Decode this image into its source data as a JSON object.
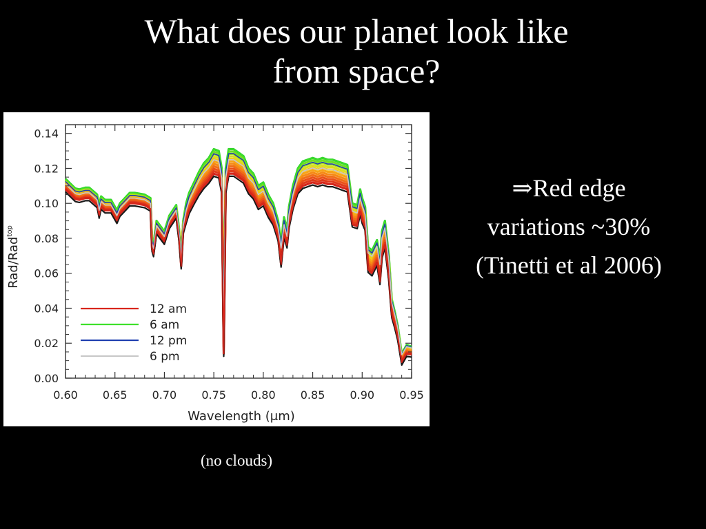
{
  "slide": {
    "title_line1": "What does our planet look like",
    "title_line2": "from space?",
    "note_line1": "⇒Red edge",
    "note_line2": "variations ~30%",
    "note_line3": "(Tinetti et al 2006)",
    "caption": "(no clouds)"
  },
  "chart_data": {
    "type": "line",
    "xlabel": "Wavelength (μm)",
    "ylabel": "Rad/Rad",
    "ylabel_superscript": "top",
    "xlim": [
      0.6,
      0.95
    ],
    "ylim": [
      0.0,
      0.145
    ],
    "xticks": [
      "0.60",
      "0.65",
      "0.70",
      "0.75",
      "0.80",
      "0.85",
      "0.90",
      "0.95"
    ],
    "yticks": [
      "0.00",
      "0.02",
      "0.04",
      "0.06",
      "0.08",
      "0.10",
      "0.12",
      "0.14"
    ],
    "legend_position": "lower-left",
    "legend": [
      {
        "label": "12 am",
        "color": "#d8261c"
      },
      {
        "label": "6 am",
        "color": "#3ee02a"
      },
      {
        "label": "12 pm",
        "color": "#1f3fb0"
      },
      {
        "label": "6 pm",
        "color": "#c8c8c8"
      }
    ],
    "x": [
      0.6,
      0.61,
      0.614,
      0.62,
      0.624,
      0.632,
      0.634,
      0.636,
      0.64,
      0.646,
      0.65,
      0.652,
      0.655,
      0.66,
      0.665,
      0.67,
      0.68,
      0.686,
      0.6875,
      0.689,
      0.692,
      0.7,
      0.705,
      0.712,
      0.715,
      0.717,
      0.719,
      0.722,
      0.725,
      0.73,
      0.735,
      0.74,
      0.745,
      0.75,
      0.755,
      0.758,
      0.76,
      0.762,
      0.765,
      0.77,
      0.775,
      0.78,
      0.785,
      0.79,
      0.795,
      0.8,
      0.805,
      0.81,
      0.815,
      0.818,
      0.821,
      0.824,
      0.826,
      0.83,
      0.835,
      0.84,
      0.845,
      0.85,
      0.855,
      0.86,
      0.865,
      0.87,
      0.875,
      0.88,
      0.885,
      0.89,
      0.895,
      0.898,
      0.9,
      0.903,
      0.906,
      0.91,
      0.915,
      0.918,
      0.92,
      0.923,
      0.927,
      0.93,
      0.933,
      0.936,
      0.94,
      0.945,
      0.95
    ],
    "series": [
      {
        "name": "6 am",
        "color": "#3ee02a",
        "values": [
          0.114,
          0.1085,
          0.108,
          0.109,
          0.109,
          0.105,
          0.099,
          0.104,
          0.102,
          0.102,
          0.098,
          0.096,
          0.1,
          0.103,
          0.106,
          0.106,
          0.105,
          0.103,
          0.08,
          0.077,
          0.09,
          0.084,
          0.093,
          0.099,
          0.085,
          0.07,
          0.09,
          0.1,
          0.106,
          0.112,
          0.118,
          0.123,
          0.126,
          0.131,
          0.13,
          0.12,
          0.033,
          0.12,
          0.131,
          0.131,
          0.129,
          0.127,
          0.12,
          0.117,
          0.11,
          0.112,
          0.105,
          0.1,
          0.09,
          0.078,
          0.092,
          0.085,
          0.098,
          0.11,
          0.12,
          0.124,
          0.125,
          0.126,
          0.125,
          0.126,
          0.125,
          0.125,
          0.124,
          0.123,
          0.122,
          0.1,
          0.099,
          0.108,
          0.103,
          0.098,
          0.075,
          0.073,
          0.079,
          0.068,
          0.084,
          0.09,
          0.07,
          0.045,
          0.038,
          0.03,
          0.014,
          0.019,
          0.018
        ]
      },
      {
        "name": "12 pm",
        "color": "#1f3fb0",
        "values": [
          0.1125,
          0.107,
          0.1065,
          0.1074,
          0.1074,
          0.1035,
          0.0975,
          0.1025,
          0.1004,
          0.1004,
          0.0965,
          0.0945,
          0.0985,
          0.1015,
          0.1045,
          0.1045,
          0.1035,
          0.1015,
          0.0785,
          0.0756,
          0.0886,
          0.0825,
          0.0915,
          0.0975,
          0.0835,
          0.0688,
          0.0885,
          0.0982,
          0.104,
          0.11,
          0.1158,
          0.1205,
          0.1235,
          0.1284,
          0.1274,
          0.1176,
          0.0312,
          0.1176,
          0.1284,
          0.1284,
          0.1264,
          0.1245,
          0.1176,
          0.1147,
          0.1078,
          0.1098,
          0.1029,
          0.098,
          0.0882,
          0.0764,
          0.0902,
          0.0833,
          0.096,
          0.1078,
          0.1176,
          0.1215,
          0.1225,
          0.1235,
          0.1225,
          0.1235,
          0.1225,
          0.1225,
          0.1215,
          0.1205,
          0.1196,
          0.098,
          0.097,
          0.1058,
          0.1009,
          0.096,
          0.0735,
          0.0715,
          0.0774,
          0.0666,
          0.0823,
          0.0882,
          0.0686,
          0.0441,
          0.0372,
          0.0294,
          0.0137,
          0.0186,
          0.0176
        ]
      },
      {
        "name": "6 pm",
        "color": "#c8c8c8",
        "values": [
          0.111,
          0.1055,
          0.105,
          0.106,
          0.106,
          0.102,
          0.096,
          0.101,
          0.099,
          0.099,
          0.095,
          0.093,
          0.097,
          0.1,
          0.103,
          0.103,
          0.102,
          0.1,
          0.077,
          0.0742,
          0.0872,
          0.081,
          0.09,
          0.096,
          0.082,
          0.0676,
          0.087,
          0.096,
          0.1015,
          0.1075,
          0.113,
          0.1175,
          0.1205,
          0.125,
          0.124,
          0.1145,
          0.03,
          0.1145,
          0.125,
          0.125,
          0.123,
          0.1212,
          0.1145,
          0.1116,
          0.105,
          0.107,
          0.1002,
          0.0955,
          0.0859,
          0.0744,
          0.0878,
          0.0811,
          0.0935,
          0.105,
          0.1145,
          0.1183,
          0.1193,
          0.1202,
          0.1193,
          0.1202,
          0.1193,
          0.1193,
          0.1183,
          0.1173,
          0.1164,
          0.0955,
          0.0945,
          0.103,
          0.0983,
          0.0935,
          0.0716,
          0.0697,
          0.0754,
          0.0649,
          0.0802,
          0.0859,
          0.0668,
          0.043,
          0.0363,
          0.0287,
          0.0134,
          0.0181,
          0.0172
        ]
      },
      {
        "name": "12 am",
        "color": "#d8261c",
        "values": [
          0.108,
          0.1025,
          0.102,
          0.103,
          0.103,
          0.099,
          0.093,
          0.098,
          0.096,
          0.096,
          0.092,
          0.09,
          0.094,
          0.097,
          0.1,
          0.1,
          0.099,
          0.097,
          0.074,
          0.071,
          0.084,
          0.078,
          0.087,
          0.093,
          0.079,
          0.064,
          0.084,
          0.09,
          0.0955,
          0.101,
          0.106,
          0.11,
          0.113,
          0.117,
          0.116,
          0.107,
          0.014,
          0.107,
          0.117,
          0.117,
          0.115,
          0.113,
          0.107,
          0.104,
          0.098,
          0.1,
          0.0935,
          0.089,
          0.08,
          0.065,
          0.082,
          0.076,
          0.087,
          0.098,
          0.107,
          0.11,
          0.111,
          0.112,
          0.111,
          0.112,
          0.111,
          0.111,
          0.11,
          0.109,
          0.108,
          0.088,
          0.087,
          0.095,
          0.09,
          0.086,
          0.062,
          0.06,
          0.066,
          0.055,
          0.07,
          0.076,
          0.057,
          0.036,
          0.03,
          0.023,
          0.009,
          0.014,
          0.0135
        ]
      }
    ]
  }
}
